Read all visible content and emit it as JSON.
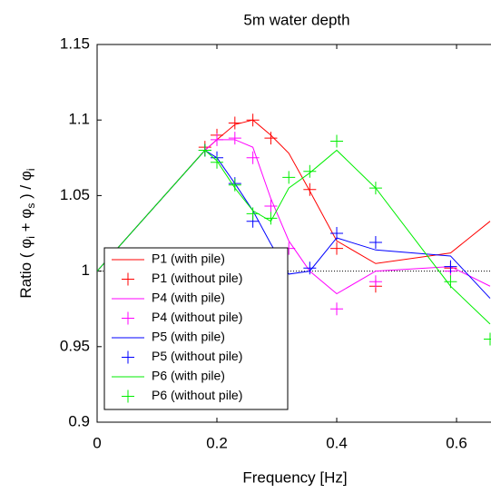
{
  "chart_data": {
    "type": "line",
    "title": "5m water depth",
    "x_label": "Frequency [Hz]",
    "y_label": [
      "Ratio ( φ",
      "i",
      " + φ",
      "s",
      " ) / φ",
      "i"
    ],
    "x": [
      0,
      0.18,
      0.2,
      0.23,
      0.26,
      0.29,
      0.32,
      0.355,
      0.4,
      0.465,
      0.59,
      0.656
    ],
    "xlim": [
      0,
      0.656
    ],
    "ylim": [
      0.9,
      1.15
    ],
    "xticks": [
      0,
      0.2,
      0.4,
      0.6
    ],
    "yticks": [
      0.9,
      0.95,
      1,
      1.05,
      1.1,
      1.15
    ],
    "reference_line": 1,
    "legend": "lower left",
    "series": [
      {
        "name": "P1 (with pile)",
        "color": "#ff0000",
        "style": "line",
        "values": [
          1,
          1.08,
          1.087,
          1.097,
          1.1,
          1.09,
          1.078,
          1.053,
          1.02,
          1.005,
          1.012,
          1.033
        ]
      },
      {
        "name": "P1 (without pile)",
        "color": "#ff0000",
        "style": "marker",
        "values": [
          null,
          1.082,
          1.09,
          1.098,
          1.1,
          1.088,
          null,
          1.054,
          1.015,
          0.99,
          1.002,
          null
        ]
      },
      {
        "name": "P4 (with pile)",
        "color": "#ff00ff",
        "style": "line",
        "values": [
          1,
          1.08,
          1.087,
          1.087,
          1.082,
          1.048,
          1.02,
          1.0,
          0.985,
          1.0,
          1.003,
          0.99
        ]
      },
      {
        "name": "P4 (without pile)",
        "color": "#ff00ff",
        "style": "marker",
        "values": [
          null,
          1.08,
          1.087,
          1.088,
          1.075,
          1.043,
          1.015,
          null,
          0.975,
          0.993,
          1.0,
          null
        ]
      },
      {
        "name": "P5 (with pile)",
        "color": "#0000ff",
        "style": "line",
        "values": [
          1,
          1.08,
          1.075,
          1.058,
          1.04,
          1.018,
          0.998,
          1.0,
          1.022,
          1.014,
          1.01,
          0.982
        ]
      },
      {
        "name": "P5 (without pile)",
        "color": "#0000ff",
        "style": "marker",
        "values": [
          null,
          1.08,
          1.075,
          1.058,
          1.033,
          1.005,
          null,
          1.002,
          1.025,
          1.019,
          1.003,
          null
        ]
      },
      {
        "name": "P6 (with pile)",
        "color": "#00ee00",
        "style": "line",
        "values": [
          1,
          1.08,
          1.073,
          1.055,
          1.04,
          1.033,
          1.055,
          1.065,
          1.08,
          1.055,
          0.99,
          0.965
        ]
      },
      {
        "name": "P6 (without pile)",
        "color": "#00ee00",
        "style": "marker",
        "values": [
          null,
          1.08,
          1.072,
          1.057,
          1.038,
          1.035,
          1.062,
          1.066,
          1.086,
          1.055,
          0.993,
          0.955
        ]
      }
    ]
  }
}
